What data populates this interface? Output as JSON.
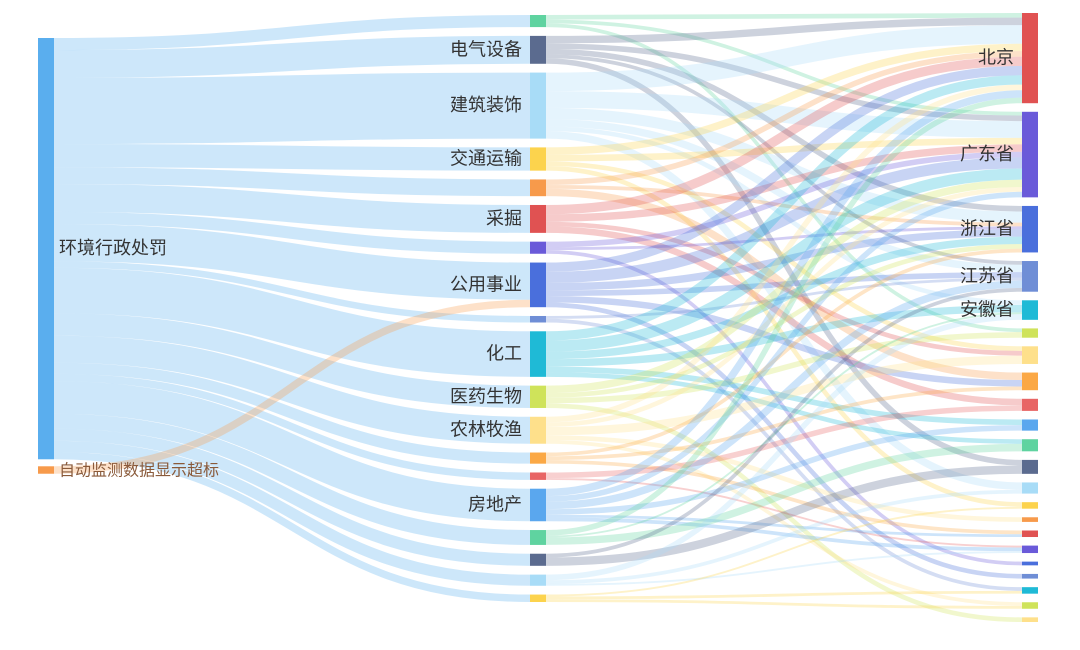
{
  "chart_data": {
    "type": "sankey",
    "link_opacity": 0.3,
    "columns": [
      [
        {
          "name": "环境行政处罚",
          "color": "#5aaeee"
        },
        {
          "name": "自动监测数据显示超标",
          "color": "#f79a4b"
        }
      ],
      [
        {
          "name": "",
          "color": "#5fd3a0"
        },
        {
          "name": "电气设备",
          "color": "#5b6b8f"
        },
        {
          "name": "建筑装饰",
          "color": "#a8dcf7"
        },
        {
          "name": "交通运输",
          "color": "#fcd34d"
        },
        {
          "name": "",
          "color": "#f79a4b"
        },
        {
          "name": "采掘",
          "color": "#e05252"
        },
        {
          "name": "",
          "color": "#6a5ad9"
        },
        {
          "name": "公用事业",
          "color": "#4a6fdc"
        },
        {
          "name": "",
          "color": "#6f8ed6"
        },
        {
          "name": "化工",
          "color": "#1fbad6"
        },
        {
          "name": "医药生物",
          "color": "#cfe35a"
        },
        {
          "name": "农林牧渔",
          "color": "#fee08b"
        },
        {
          "name": "",
          "color": "#fba845"
        },
        {
          "name": "",
          "color": "#e86565"
        },
        {
          "name": "房地产",
          "color": "#5aa7ee"
        },
        {
          "name": "",
          "color": "#5fd3a0"
        },
        {
          "name": "",
          "color": "#5b6b8f"
        },
        {
          "name": "",
          "color": "#a8dcf7"
        },
        {
          "name": "",
          "color": "#fcd34d"
        }
      ],
      [
        {
          "name": "北京",
          "color": "#e05252"
        },
        {
          "name": "广东省",
          "color": "#6a5ad9"
        },
        {
          "name": "浙江省",
          "color": "#4a6fdc"
        },
        {
          "name": "江苏省",
          "color": "#6f8ed6"
        },
        {
          "name": "安徽省",
          "color": "#1fbad6"
        },
        {
          "name": "",
          "color": "#cfe35a"
        },
        {
          "name": "",
          "color": "#fee08b"
        },
        {
          "name": "",
          "color": "#fba845"
        },
        {
          "name": "",
          "color": "#e86565"
        },
        {
          "name": "",
          "color": "#5aa7ee"
        },
        {
          "name": "",
          "color": "#5fd3a0"
        },
        {
          "name": "",
          "color": "#5b6b8f"
        },
        {
          "name": "",
          "color": "#a8dcf7"
        },
        {
          "name": "",
          "color": "#fcd34d"
        },
        {
          "name": "",
          "color": "#f79a4b"
        },
        {
          "name": "",
          "color": "#e05252"
        },
        {
          "name": "",
          "color": "#6a5ad9"
        },
        {
          "name": "",
          "color": "#4a6fdc"
        },
        {
          "name": "",
          "color": "#6f8ed6"
        },
        {
          "name": "",
          "color": "#1fbad6"
        },
        {
          "name": "",
          "color": "#cfe35a"
        },
        {
          "name": "",
          "color": "#fee08b"
        }
      ]
    ],
    "links_col0_to_col1": [
      [
        0,
        0,
        13
      ],
      [
        0,
        1,
        30
      ],
      [
        0,
        2,
        71
      ],
      [
        0,
        3,
        25
      ],
      [
        0,
        4,
        18
      ],
      [
        0,
        5,
        30
      ],
      [
        0,
        6,
        13
      ],
      [
        0,
        7,
        40
      ],
      [
        0,
        8,
        7
      ],
      [
        0,
        9,
        49
      ],
      [
        0,
        10,
        24
      ],
      [
        0,
        11,
        29
      ],
      [
        0,
        12,
        12
      ],
      [
        0,
        13,
        8
      ],
      [
        0,
        14,
        35
      ],
      [
        0,
        15,
        16
      ],
      [
        0,
        16,
        13
      ],
      [
        0,
        17,
        12
      ],
      [
        0,
        18,
        8
      ],
      [
        1,
        7,
        8
      ]
    ],
    "links_col1_to_col2": [
      [
        0,
        0,
        5
      ],
      [
        0,
        1,
        4
      ],
      [
        0,
        5,
        4
      ],
      [
        1,
        0,
        8
      ],
      [
        1,
        1,
        6
      ],
      [
        1,
        2,
        6
      ],
      [
        1,
        3,
        4
      ],
      [
        1,
        11,
        6
      ],
      [
        2,
        0,
        20
      ],
      [
        2,
        1,
        18
      ],
      [
        2,
        2,
        12
      ],
      [
        2,
        3,
        8
      ],
      [
        2,
        4,
        5
      ],
      [
        2,
        12,
        8
      ],
      [
        3,
        0,
        8
      ],
      [
        3,
        1,
        7
      ],
      [
        3,
        6,
        5
      ],
      [
        3,
        13,
        5
      ],
      [
        4,
        0,
        6
      ],
      [
        4,
        2,
        4
      ],
      [
        4,
        7,
        8
      ],
      [
        5,
        0,
        10
      ],
      [
        5,
        1,
        8
      ],
      [
        5,
        8,
        7
      ],
      [
        5,
        6,
        5
      ],
      [
        6,
        1,
        6
      ],
      [
        6,
        2,
        3
      ],
      [
        6,
        17,
        4
      ],
      [
        7,
        0,
        10
      ],
      [
        7,
        1,
        12
      ],
      [
        7,
        2,
        8
      ],
      [
        7,
        3,
        6
      ],
      [
        7,
        18,
        5
      ],
      [
        7,
        7,
        7
      ],
      [
        8,
        3,
        3
      ],
      [
        8,
        19,
        4
      ],
      [
        9,
        0,
        10
      ],
      [
        9,
        1,
        12
      ],
      [
        9,
        2,
        8
      ],
      [
        9,
        4,
        8
      ],
      [
        9,
        9,
        6
      ],
      [
        9,
        10,
        5
      ],
      [
        10,
        1,
        8
      ],
      [
        10,
        2,
        5
      ],
      [
        10,
        5,
        6
      ],
      [
        10,
        21,
        5
      ],
      [
        11,
        0,
        6
      ],
      [
        11,
        1,
        5
      ],
      [
        11,
        6,
        9
      ],
      [
        11,
        20,
        4
      ],
      [
        11,
        14,
        5
      ],
      [
        12,
        7,
        4
      ],
      [
        12,
        15,
        4
      ],
      [
        12,
        2,
        4
      ],
      [
        13,
        8,
        6
      ],
      [
        13,
        16,
        2
      ],
      [
        14,
        0,
        8
      ],
      [
        14,
        1,
        6
      ],
      [
        14,
        3,
        8
      ],
      [
        14,
        9,
        6
      ],
      [
        14,
        15,
        3
      ],
      [
        14,
        16,
        4
      ],
      [
        15,
        0,
        6
      ],
      [
        15,
        10,
        8
      ],
      [
        15,
        4,
        2
      ],
      [
        16,
        11,
        9
      ],
      [
        16,
        3,
        4
      ],
      [
        17,
        12,
        4
      ],
      [
        17,
        4,
        6
      ],
      [
        17,
        16,
        2
      ],
      [
        18,
        13,
        2
      ],
      [
        18,
        20,
        3
      ],
      [
        18,
        19,
        3
      ]
    ]
  }
}
